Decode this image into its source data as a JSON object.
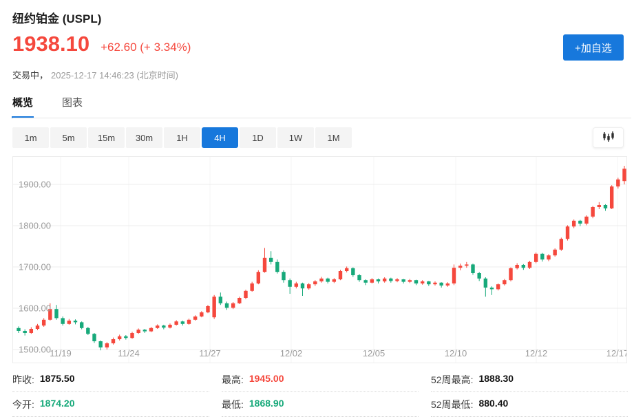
{
  "header": {
    "title": "纽约铂金 (USPL)",
    "price": "1938.10",
    "change": "+62.60 (+ 3.34%)",
    "status_label": "交易中，",
    "timestamp": "2025-12-17 14:46:23 (北京时间)",
    "watchlist_button": "+加自选"
  },
  "tabs": [
    {
      "label": "概览",
      "active": true
    },
    {
      "label": "图表",
      "active": false
    }
  ],
  "toolbar": {
    "ranges": [
      "1m",
      "5m",
      "15m",
      "30m",
      "1H",
      "4H",
      "1D",
      "1W",
      "1M"
    ],
    "active_range": "4H",
    "chart_style_icon": "candlestick-icon"
  },
  "chart_data": {
    "type": "candlestick",
    "symbol": "USPL",
    "interval": "4H",
    "y_ticks": [
      "1900.00",
      "1800.00",
      "1700.00",
      "1600.00",
      "1500.00"
    ],
    "y_tick_values": [
      1900,
      1800,
      1700,
      1600,
      1500
    ],
    "x_ticks": [
      "11/19",
      "11/24",
      "11/27",
      "12/02",
      "12/05",
      "12/10",
      "12/12",
      "12/17"
    ],
    "grid": true,
    "colors": {
      "up": "#f5483d",
      "down": "#17a97a"
    },
    "candles_ohlc": [
      [
        1552,
        1556,
        1540,
        1545
      ],
      [
        1545,
        1549,
        1534,
        1540
      ],
      [
        1540,
        1554,
        1538,
        1550
      ],
      [
        1550,
        1562,
        1547,
        1558
      ],
      [
        1558,
        1576,
        1555,
        1572
      ],
      [
        1572,
        1612,
        1570,
        1598
      ],
      [
        1598,
        1608,
        1572,
        1576
      ],
      [
        1576,
        1580,
        1558,
        1562
      ],
      [
        1562,
        1574,
        1560,
        1570
      ],
      [
        1570,
        1573,
        1561,
        1566
      ],
      [
        1566,
        1568,
        1549,
        1552
      ],
      [
        1552,
        1555,
        1535,
        1538
      ],
      [
        1538,
        1540,
        1516,
        1520
      ],
      [
        1520,
        1522,
        1498,
        1505
      ],
      [
        1505,
        1518,
        1500,
        1515
      ],
      [
        1515,
        1529,
        1512,
        1525
      ],
      [
        1525,
        1536,
        1522,
        1532
      ],
      [
        1532,
        1535,
        1524,
        1528
      ],
      [
        1528,
        1543,
        1526,
        1540
      ],
      [
        1540,
        1551,
        1538,
        1548
      ],
      [
        1548,
        1550,
        1540,
        1544
      ],
      [
        1544,
        1555,
        1542,
        1552
      ],
      [
        1552,
        1561,
        1550,
        1558
      ],
      [
        1558,
        1560,
        1549,
        1553
      ],
      [
        1553,
        1563,
        1551,
        1560
      ],
      [
        1560,
        1571,
        1558,
        1568
      ],
      [
        1568,
        1570,
        1558,
        1562
      ],
      [
        1562,
        1575,
        1560,
        1572
      ],
      [
        1572,
        1583,
        1570,
        1580
      ],
      [
        1580,
        1593,
        1578,
        1590
      ],
      [
        1590,
        1608,
        1588,
        1605
      ],
      [
        1578,
        1632,
        1574,
        1628
      ],
      [
        1628,
        1638,
        1608,
        1612
      ],
      [
        1612,
        1616,
        1596,
        1601
      ],
      [
        1601,
        1615,
        1598,
        1612
      ],
      [
        1612,
        1628,
        1610,
        1625
      ],
      [
        1625,
        1645,
        1622,
        1642
      ],
      [
        1642,
        1664,
        1640,
        1660
      ],
      [
        1660,
        1692,
        1658,
        1688
      ],
      [
        1688,
        1746,
        1686,
        1722
      ],
      [
        1722,
        1738,
        1706,
        1712
      ],
      [
        1712,
        1718,
        1684,
        1688
      ],
      [
        1688,
        1692,
        1662,
        1668
      ],
      [
        1668,
        1672,
        1635,
        1652
      ],
      [
        1652,
        1664,
        1648,
        1660
      ],
      [
        1660,
        1662,
        1630,
        1648
      ],
      [
        1648,
        1661,
        1645,
        1658
      ],
      [
        1658,
        1668,
        1654,
        1665
      ],
      [
        1665,
        1676,
        1662,
        1672
      ],
      [
        1672,
        1674,
        1660,
        1664
      ],
      [
        1664,
        1673,
        1661,
        1670
      ],
      [
        1670,
        1693,
        1668,
        1690
      ],
      [
        1690,
        1701,
        1687,
        1697
      ],
      [
        1697,
        1699,
        1676,
        1680
      ],
      [
        1680,
        1683,
        1664,
        1668
      ],
      [
        1668,
        1670,
        1656,
        1662
      ],
      [
        1662,
        1673,
        1660,
        1670
      ],
      [
        1670,
        1672,
        1660,
        1665
      ],
      [
        1665,
        1675,
        1662,
        1672
      ],
      [
        1672,
        1674,
        1662,
        1666
      ],
      [
        1666,
        1673,
        1663,
        1670
      ],
      [
        1670,
        1671,
        1660,
        1664
      ],
      [
        1664,
        1671,
        1661,
        1668
      ],
      [
        1668,
        1669,
        1656,
        1660
      ],
      [
        1660,
        1668,
        1657,
        1665
      ],
      [
        1665,
        1666,
        1654,
        1658
      ],
      [
        1658,
        1665,
        1655,
        1662
      ],
      [
        1662,
        1663,
        1650,
        1655
      ],
      [
        1655,
        1663,
        1652,
        1660
      ],
      [
        1660,
        1706,
        1656,
        1698
      ],
      [
        1698,
        1708,
        1692,
        1703
      ],
      [
        1703,
        1712,
        1698,
        1706
      ],
      [
        1706,
        1708,
        1681,
        1685
      ],
      [
        1685,
        1688,
        1666,
        1672
      ],
      [
        1672,
        1675,
        1628,
        1650
      ],
      [
        1650,
        1653,
        1632,
        1646
      ],
      [
        1646,
        1660,
        1643,
        1658
      ],
      [
        1658,
        1671,
        1655,
        1668
      ],
      [
        1668,
        1699,
        1665,
        1697
      ],
      [
        1697,
        1709,
        1694,
        1705
      ],
      [
        1705,
        1707,
        1693,
        1698
      ],
      [
        1698,
        1715,
        1695,
        1712
      ],
      [
        1712,
        1735,
        1709,
        1732
      ],
      [
        1732,
        1734,
        1713,
        1718
      ],
      [
        1718,
        1731,
        1714,
        1728
      ],
      [
        1728,
        1745,
        1725,
        1742
      ],
      [
        1742,
        1771,
        1739,
        1768
      ],
      [
        1768,
        1801,
        1764,
        1798
      ],
      [
        1798,
        1815,
        1794,
        1812
      ],
      [
        1812,
        1814,
        1799,
        1805
      ],
      [
        1805,
        1825,
        1801,
        1822
      ],
      [
        1822,
        1848,
        1818,
        1845
      ],
      [
        1845,
        1857,
        1840,
        1850
      ],
      [
        1850,
        1852,
        1836,
        1842
      ],
      [
        1842,
        1898,
        1840,
        1895
      ],
      [
        1895,
        1916,
        1890,
        1912
      ],
      [
        1908,
        1945,
        1900,
        1938
      ]
    ]
  },
  "stats": {
    "rows": [
      [
        {
          "label": "昨收:",
          "value": "1875.50",
          "color": "black"
        },
        {
          "label": "最高:",
          "value": "1945.00",
          "color": "red"
        },
        {
          "label": "52周最高:",
          "value": "1888.30",
          "color": "black"
        }
      ],
      [
        {
          "label": "今开:",
          "value": "1874.20",
          "color": "green"
        },
        {
          "label": "最低:",
          "value": "1868.90",
          "color": "green"
        },
        {
          "label": "52周最低:",
          "value": "880.40",
          "color": "black"
        }
      ]
    ]
  }
}
